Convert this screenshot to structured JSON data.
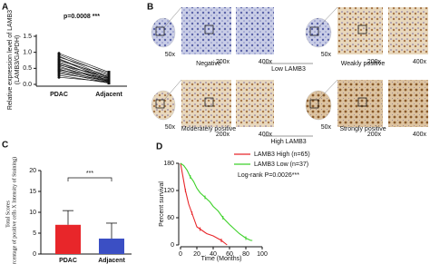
{
  "panel_labels": [
    "A",
    "B",
    "C",
    "D"
  ],
  "chart_data": [
    {
      "type": "paired",
      "annotation": "p=0.0008 ***",
      "ylabel": [
        "Relative expression level of LAMB3",
        "(LAMB3/GAPDH)"
      ],
      "categories": [
        "PDAC",
        "Adjacent"
      ],
      "color": "#111111",
      "ylim": [
        0,
        1.5
      ],
      "yticks": [
        {
          "value": 0,
          "label": "0.0"
        },
        {
          "value": 0.5,
          "label": "0.5"
        },
        {
          "value": 1,
          "label": "1.0"
        },
        {
          "value": 1.5,
          "label": "1.5"
        }
      ],
      "series": [
        {
          "values": [
            0.97,
            0.38
          ]
        },
        {
          "values": [
            0.93,
            0.3
          ]
        },
        {
          "values": [
            0.88,
            0.22
          ]
        },
        {
          "values": [
            0.85,
            0.35
          ]
        },
        {
          "values": [
            0.8,
            0.2
          ]
        },
        {
          "values": [
            0.78,
            0.15
          ]
        },
        {
          "values": [
            0.74,
            0.28
          ]
        },
        {
          "values": [
            0.7,
            0.12
          ]
        },
        {
          "values": [
            0.66,
            0.18
          ]
        },
        {
          "values": [
            0.62,
            0.1
          ]
        },
        {
          "values": [
            0.6,
            0.25
          ]
        },
        {
          "values": [
            0.56,
            0.08
          ]
        },
        {
          "values": [
            0.52,
            0.14
          ]
        },
        {
          "values": [
            0.48,
            0.06
          ]
        },
        {
          "values": [
            0.45,
            0.2
          ]
        },
        {
          "values": [
            0.42,
            0.1
          ]
        },
        {
          "values": [
            0.38,
            0.05
          ]
        },
        {
          "values": [
            0.33,
            0.12
          ]
        },
        {
          "values": [
            0.28,
            0.04
          ]
        },
        {
          "values": [
            0.22,
            0.08
          ]
        }
      ]
    },
    {
      "type": "bar",
      "annotation": "***",
      "ylabel": [
        "Total Scores",
        "(Percentage of positive cells X Intensity of Staining)"
      ],
      "categories": [
        "PDAC",
        "Adjacent"
      ],
      "values": [
        7,
        3.7
      ],
      "errors": [
        3.4,
        3.7
      ],
      "colors": [
        "#e8262a",
        "#3b4fc4"
      ],
      "ylim": [
        0,
        20
      ],
      "yticks": [
        0,
        5,
        10,
        15,
        20
      ]
    },
    {
      "type": "line",
      "xlabel": "Time (Months)",
      "ylabel": "Percent survival",
      "annotation": "Log-rank P=0.0026***",
      "xlim": [
        0,
        100
      ],
      "xticks": [
        0,
        20,
        40,
        60,
        80,
        100
      ],
      "ylim": [
        0,
        180
      ],
      "yticks": [
        0,
        60,
        120,
        180
      ],
      "series": [
        {
          "name": "LAMB3 High (n=65)",
          "color": "#e8262a",
          "x": [
            0,
            2,
            4,
            6,
            8,
            10,
            12,
            14,
            16,
            18,
            20,
            24,
            28,
            32,
            40,
            50,
            57
          ],
          "values": [
            180,
            160,
            140,
            120,
            105,
            90,
            80,
            70,
            60,
            50,
            40,
            35,
            30,
            25,
            20,
            10,
            0
          ]
        },
        {
          "name": "LAMB3 Low  (n=37)",
          "color": "#3ed12a",
          "x": [
            0,
            4,
            8,
            12,
            16,
            20,
            24,
            30,
            36,
            40,
            46,
            52,
            60,
            66,
            72,
            80,
            86,
            88
          ],
          "values": [
            180,
            175,
            165,
            150,
            140,
            125,
            115,
            105,
            95,
            85,
            75,
            60,
            45,
            35,
            25,
            15,
            10,
            10
          ]
        }
      ]
    }
  ],
  "histology": {
    "rows": [
      {
        "left_label": "Negative",
        "middle_label": "Low LAMB3",
        "right_label": "Weakly positive",
        "magnifications": [
          "50x",
          "200x",
          "400x",
          "50x",
          "200x",
          "400x"
        ]
      },
      {
        "left_label": "Moderately positive",
        "middle_label": "High LAMB3",
        "right_label": "Strongly positive",
        "magnifications": [
          "50x",
          "200x",
          "400x",
          "50x",
          "200x",
          "400x"
        ]
      }
    ]
  }
}
